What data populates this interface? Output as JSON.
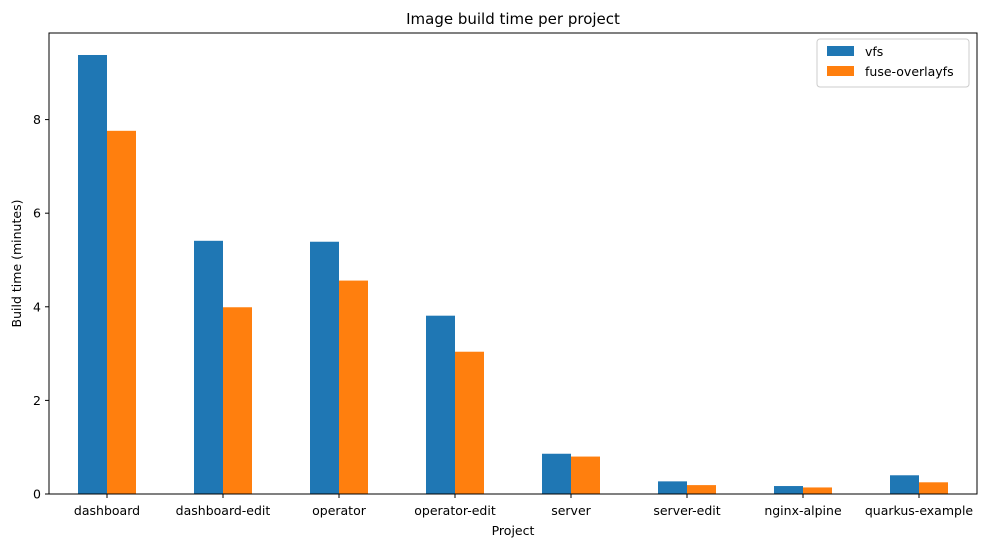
{
  "chart_data": {
    "type": "bar",
    "title": "Image build time per project",
    "xlabel": "Project",
    "ylabel": "Build time (minutes)",
    "categories": [
      "dashboard",
      "dashboard-edit",
      "operator",
      "operator-edit",
      "server",
      "server-edit",
      "nginx-alpine",
      "quarkus-example"
    ],
    "series": [
      {
        "name": "vfs",
        "color": "#1f77b4",
        "values": [
          9.38,
          5.41,
          5.39,
          3.81,
          0.86,
          0.27,
          0.17,
          0.4
        ]
      },
      {
        "name": "fuse-overlayfs",
        "color": "#ff7f0e",
        "values": [
          7.76,
          3.99,
          4.56,
          3.04,
          0.8,
          0.19,
          0.14,
          0.25
        ]
      }
    ],
    "ylim": [
      0,
      9.85
    ],
    "yticks": [
      0,
      2,
      4,
      6,
      8
    ],
    "grid": false,
    "legend": "top-right"
  }
}
